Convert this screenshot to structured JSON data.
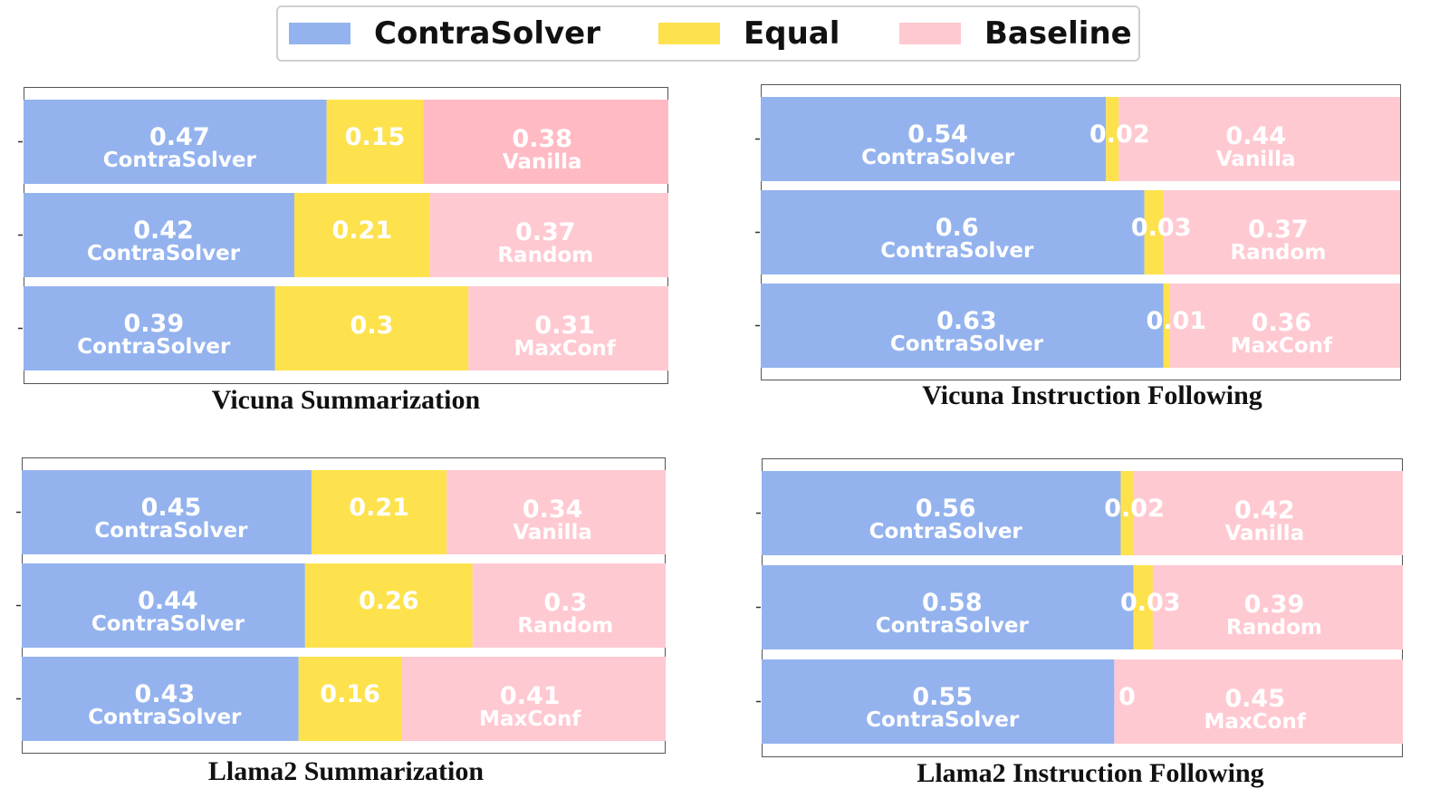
{
  "legend": {
    "contra": "ContraSolver",
    "equal": "Equal",
    "baseline": "Baseline"
  },
  "colors": {
    "contra": "#94b3ee",
    "equal": "#fde24d",
    "baseline": "#ffc9d1",
    "baseline_highlight": "#ffbac4"
  },
  "chart_data": [
    {
      "type": "bar",
      "stacked": true,
      "orientation": "horizontal",
      "title": "Vicuna Summarization",
      "rows": [
        {
          "contra": 0.47,
          "equal": 0.15,
          "baseline": 0.38,
          "contra_label": "ContraSolver",
          "baseline_label": "Vanilla",
          "contra_text": "0.47",
          "equal_text": "0.15",
          "baseline_text": "0.38"
        },
        {
          "contra": 0.42,
          "equal": 0.21,
          "baseline": 0.37,
          "contra_label": "ContraSolver",
          "baseline_label": "Random",
          "contra_text": "0.42",
          "equal_text": "0.21",
          "baseline_text": "0.37"
        },
        {
          "contra": 0.39,
          "equal": 0.3,
          "baseline": 0.31,
          "contra_label": "ContraSolver",
          "baseline_label": "MaxConf",
          "contra_text": "0.39",
          "equal_text": "0.3",
          "baseline_text": "0.31"
        }
      ]
    },
    {
      "type": "bar",
      "stacked": true,
      "orientation": "horizontal",
      "title": "Vicuna Instruction Following",
      "rows": [
        {
          "contra": 0.54,
          "equal": 0.02,
          "baseline": 0.44,
          "contra_label": "ContraSolver",
          "baseline_label": "Vanilla",
          "contra_text": "0.54",
          "equal_text": "0.02",
          "baseline_text": "0.44"
        },
        {
          "contra": 0.6,
          "equal": 0.03,
          "baseline": 0.37,
          "contra_label": "ContraSolver",
          "baseline_label": "Random",
          "contra_text": "0.6",
          "equal_text": "0.03",
          "baseline_text": "0.37"
        },
        {
          "contra": 0.63,
          "equal": 0.01,
          "baseline": 0.36,
          "contra_label": "ContraSolver",
          "baseline_label": "MaxConf",
          "contra_text": "0.63",
          "equal_text": "0.01",
          "baseline_text": "0.36"
        }
      ]
    },
    {
      "type": "bar",
      "stacked": true,
      "orientation": "horizontal",
      "title": "Llama2 Summarization",
      "rows": [
        {
          "contra": 0.45,
          "equal": 0.21,
          "baseline": 0.34,
          "contra_label": "ContraSolver",
          "baseline_label": "Vanilla",
          "contra_text": "0.45",
          "equal_text": "0.21",
          "baseline_text": "0.34"
        },
        {
          "contra": 0.44,
          "equal": 0.26,
          "baseline": 0.3,
          "contra_label": "ContraSolver",
          "baseline_label": "Random",
          "contra_text": "0.44",
          "equal_text": "0.26",
          "baseline_text": "0.3"
        },
        {
          "contra": 0.43,
          "equal": 0.16,
          "baseline": 0.41,
          "contra_label": "ContraSolver",
          "baseline_label": "MaxConf",
          "contra_text": "0.43",
          "equal_text": "0.16",
          "baseline_text": "0.41"
        }
      ]
    },
    {
      "type": "bar",
      "stacked": true,
      "orientation": "horizontal",
      "title": "Llama2 Instruction Following",
      "rows": [
        {
          "contra": 0.56,
          "equal": 0.02,
          "baseline": 0.42,
          "contra_label": "ContraSolver",
          "baseline_label": "Vanilla",
          "contra_text": "0.56",
          "equal_text": "0.02",
          "baseline_text": "0.42"
        },
        {
          "contra": 0.58,
          "equal": 0.03,
          "baseline": 0.39,
          "contra_label": "ContraSolver",
          "baseline_label": "Random",
          "contra_text": "0.58",
          "equal_text": "0.03",
          "baseline_text": "0.39"
        },
        {
          "contra": 0.55,
          "equal": 0,
          "baseline": 0.45,
          "contra_label": "ContraSolver",
          "baseline_label": "MaxConf",
          "contra_text": "0.55",
          "equal_text": "0",
          "baseline_text": "0.45"
        }
      ]
    }
  ]
}
